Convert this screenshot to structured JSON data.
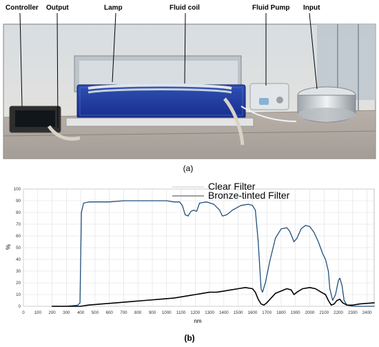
{
  "figure": {
    "panel_a": {
      "label": "(a)",
      "annotations": [
        "Controller",
        "Output",
        "Lamp",
        "Fluid coil",
        "Fluid Pump",
        "Input"
      ]
    },
    "panel_b": {
      "label": "(b)"
    }
  },
  "chart_data": {
    "type": "line",
    "xlabel": "nm",
    "ylabel": "%",
    "xlim": [
      0,
      2450
    ],
    "ylim": [
      0,
      100
    ],
    "x_ticks": [
      0,
      100,
      200,
      300,
      400,
      500,
      600,
      700,
      800,
      900,
      1000,
      1100,
      1200,
      1300,
      1400,
      1500,
      1600,
      1700,
      1800,
      1900,
      2000,
      2100,
      2200,
      2300,
      2400
    ],
    "y_ticks": [
      0,
      10,
      20,
      30,
      40,
      50,
      60,
      70,
      80,
      90,
      100
    ],
    "grid": true,
    "legend_position": "top-center",
    "series": [
      {
        "name": "Clear Filter",
        "color": "#1f4e79",
        "points": [
          [
            200,
            0
          ],
          [
            300,
            0
          ],
          [
            380,
            1
          ],
          [
            395,
            3
          ],
          [
            405,
            80
          ],
          [
            420,
            88
          ],
          [
            460,
            89
          ],
          [
            500,
            89
          ],
          [
            600,
            89
          ],
          [
            700,
            90
          ],
          [
            800,
            90
          ],
          [
            900,
            90
          ],
          [
            1000,
            90
          ],
          [
            1050,
            89
          ],
          [
            1090,
            89
          ],
          [
            1110,
            86
          ],
          [
            1130,
            78
          ],
          [
            1150,
            77
          ],
          [
            1170,
            81
          ],
          [
            1190,
            82
          ],
          [
            1210,
            81
          ],
          [
            1230,
            88
          ],
          [
            1280,
            89
          ],
          [
            1330,
            87
          ],
          [
            1370,
            82
          ],
          [
            1390,
            77
          ],
          [
            1420,
            78
          ],
          [
            1460,
            82
          ],
          [
            1520,
            86
          ],
          [
            1570,
            87
          ],
          [
            1600,
            86
          ],
          [
            1620,
            82
          ],
          [
            1640,
            55
          ],
          [
            1660,
            15
          ],
          [
            1670,
            12
          ],
          [
            1690,
            20
          ],
          [
            1720,
            38
          ],
          [
            1760,
            58
          ],
          [
            1800,
            66
          ],
          [
            1840,
            67
          ],
          [
            1860,
            64
          ],
          [
            1890,
            55
          ],
          [
            1910,
            58
          ],
          [
            1940,
            66
          ],
          [
            1970,
            69
          ],
          [
            2000,
            68
          ],
          [
            2030,
            63
          ],
          [
            2060,
            55
          ],
          [
            2090,
            45
          ],
          [
            2110,
            40
          ],
          [
            2130,
            30
          ],
          [
            2140,
            15
          ],
          [
            2160,
            5
          ],
          [
            2180,
            10
          ],
          [
            2200,
            22
          ],
          [
            2210,
            24
          ],
          [
            2225,
            18
          ],
          [
            2240,
            5
          ],
          [
            2260,
            1
          ],
          [
            2300,
            0
          ],
          [
            2450,
            0
          ]
        ]
      },
      {
        "name": "Bronze-tinted Filter",
        "color": "#000000",
        "points": [
          [
            200,
            0
          ],
          [
            300,
            0
          ],
          [
            380,
            0
          ],
          [
            400,
            0
          ],
          [
            450,
            1
          ],
          [
            550,
            2
          ],
          [
            650,
            3
          ],
          [
            750,
            4
          ],
          [
            850,
            5
          ],
          [
            950,
            6
          ],
          [
            1050,
            7
          ],
          [
            1100,
            8
          ],
          [
            1150,
            9
          ],
          [
            1200,
            10
          ],
          [
            1250,
            11
          ],
          [
            1300,
            12
          ],
          [
            1350,
            12
          ],
          [
            1400,
            13
          ],
          [
            1450,
            14
          ],
          [
            1500,
            15
          ],
          [
            1550,
            16
          ],
          [
            1600,
            15
          ],
          [
            1620,
            12
          ],
          [
            1640,
            6
          ],
          [
            1660,
            2
          ],
          [
            1680,
            1
          ],
          [
            1700,
            3
          ],
          [
            1730,
            7
          ],
          [
            1760,
            11
          ],
          [
            1800,
            13
          ],
          [
            1840,
            15
          ],
          [
            1870,
            14
          ],
          [
            1890,
            10
          ],
          [
            1910,
            12
          ],
          [
            1950,
            15
          ],
          [
            2000,
            16
          ],
          [
            2040,
            15
          ],
          [
            2080,
            12
          ],
          [
            2110,
            10
          ],
          [
            2130,
            5
          ],
          [
            2150,
            1
          ],
          [
            2170,
            2
          ],
          [
            2190,
            5
          ],
          [
            2210,
            6
          ],
          [
            2230,
            3
          ],
          [
            2260,
            1
          ],
          [
            2300,
            1
          ],
          [
            2350,
            2
          ],
          [
            2450,
            3
          ]
        ]
      }
    ]
  }
}
